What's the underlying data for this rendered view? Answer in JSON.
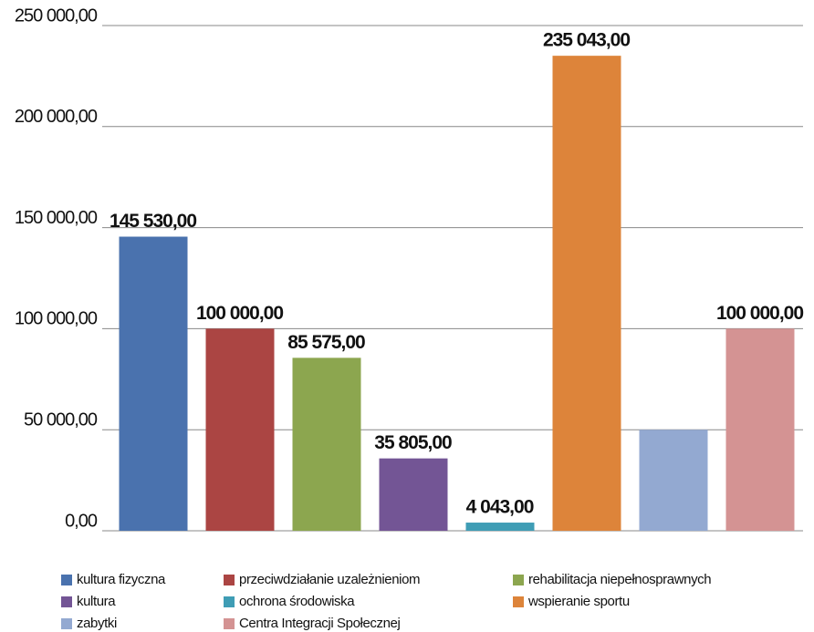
{
  "chart_data": {
    "type": "bar",
    "categories": [
      "kultura fizyczna",
      "przeciwdziałanie uzależnieniom",
      "rehabilitacja niepełnosprawnych",
      "kultura",
      "ochrona środowiska",
      "wspieranie sportu",
      "zabytki",
      "Centra Integracji Społecznej"
    ],
    "values": [
      145530,
      100000,
      85575,
      35805,
      4043,
      235043,
      50000,
      100000
    ],
    "value_labels": [
      "145 530,00",
      "100 000,00",
      "85 575,00",
      "35 805,00",
      "4 043,00",
      "235 043,00",
      null,
      "100 000,00"
    ],
    "colors": [
      "#4a72ae",
      "#ab4543",
      "#8ca64f",
      "#735595",
      "#3f9db5",
      "#dd843a",
      "#93a9d1",
      "#d49393"
    ],
    "ylim": [
      0,
      250000
    ],
    "yticks": [
      {
        "value": 0,
        "label": "0,00"
      },
      {
        "value": 50000,
        "label": "50 000,00"
      },
      {
        "value": 100000,
        "label": "100 000,00"
      },
      {
        "value": 150000,
        "label": "150 000,00"
      },
      {
        "value": 200000,
        "label": "200 000,00"
      },
      {
        "value": 250000,
        "label": "250 000,00"
      }
    ],
    "grid": true,
    "legend": "bottom"
  }
}
